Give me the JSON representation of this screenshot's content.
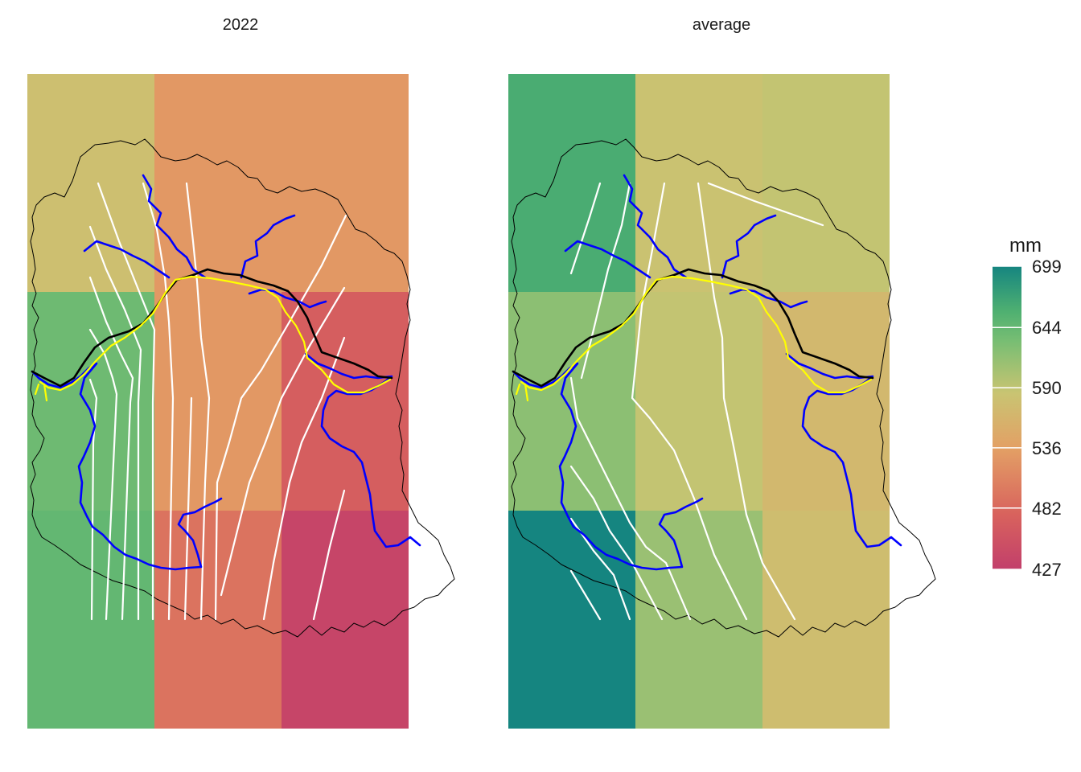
{
  "chart_data": {
    "type": "heatmap",
    "legend": {
      "title": "mm",
      "ticks": [
        699,
        644,
        590,
        536,
        482,
        427
      ],
      "range": [
        427,
        699
      ],
      "placement": "right",
      "colors": [
        "#c23f6b",
        "#d8625d",
        "#e3a065",
        "#c9c472",
        "#79be73",
        "#4fb071",
        "#158580"
      ]
    },
    "panels": [
      {
        "title": "2022",
        "rows": 3,
        "cols": 3,
        "values": [
          [
            578,
            528,
            528
          ],
          [
            638,
            528,
            470
          ],
          [
            645,
            492,
            436
          ]
        ]
      },
      {
        "title": "average",
        "rows": 3,
        "cols": 3,
        "values": [
          [
            662,
            582,
            588
          ],
          [
            620,
            588,
            568
          ],
          [
            699,
            612,
            575
          ]
        ]
      }
    ],
    "overlay_colors": {
      "basin_outline": "#000000",
      "rivers": "#0000ff",
      "main_channel_black": "#000000",
      "main_channel_yellow": "#ffff00",
      "isolines": "#ffffff"
    }
  }
}
